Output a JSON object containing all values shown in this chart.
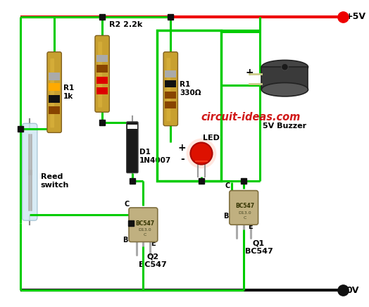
{
  "bg_color": "#ffffff",
  "green_wire_color": "#00cc00",
  "red_wire_color": "#ee0000",
  "black_wire_color": "#111111",
  "plus5v_label": "+5V",
  "gnd_label": "0V",
  "r1_label": "R1\n1k",
  "r2_label": "R2 2.2k",
  "r1b_label": "R1\n330Ω",
  "led_label": "LED",
  "d1_label": "D1\n1N4007",
  "q1_label": "Q1\nBC547",
  "q2_label": "Q2\nBC547",
  "buzzer_label": "5V Buzzer",
  "reed_label": "Reed\nswitch",
  "watermark": "circuit-ideas.com",
  "lw_wire": 2.2,
  "lw_rail": 3.0
}
